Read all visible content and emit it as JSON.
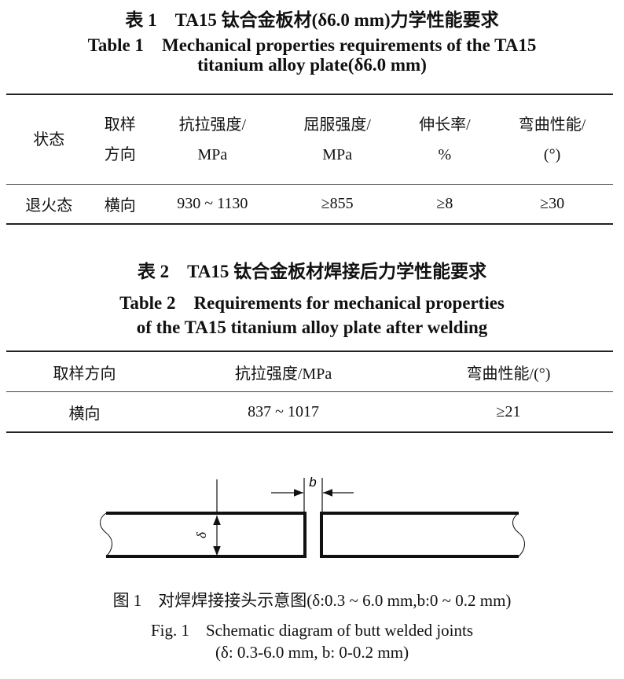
{
  "table1": {
    "title_cn": "表 1　TA15 钛合金板材(δ6.0 mm)力学性能要求",
    "title_en_1": "Table 1　Mechanical properties requirements of the TA15",
    "title_en_2": "titanium alloy plate(δ6.0 mm)",
    "headers": [
      [
        "状态",
        ""
      ],
      [
        "取样",
        "方向"
      ],
      [
        "抗拉强度/",
        "MPa"
      ],
      [
        "屈服强度/",
        "MPa"
      ],
      [
        "伸长率/",
        "%"
      ],
      [
        "弯曲性能/",
        "(°)"
      ]
    ],
    "rows": [
      [
        "退火态",
        "横向",
        "930 ~ 1130",
        "≥855",
        "≥8",
        "≥30"
      ]
    ]
  },
  "table2": {
    "title_cn": "表 2　TA15 钛合金板材焊接后力学性能要求",
    "title_en_1": "Table 2　Requirements for mechanical properties",
    "title_en_2": "of the TA15 titanium alloy plate after welding",
    "headers": [
      "取样方向",
      "抗拉强度/MPa",
      "弯曲性能/(°)"
    ],
    "rows": [
      [
        "横向",
        "837 ~ 1017",
        "≥21"
      ]
    ]
  },
  "figure1": {
    "label_b": "b",
    "label_delta": "δ",
    "caption_cn": "图 1　对焊焊接接头示意图(δ:0.3 ~ 6.0 mm,b:0 ~ 0.2 mm)",
    "caption_en_1": "Fig. 1　Schematic diagram of butt welded joints",
    "caption_en_2": "(δ: 0.3-6.0 mm, b: 0-0.2 mm)"
  }
}
